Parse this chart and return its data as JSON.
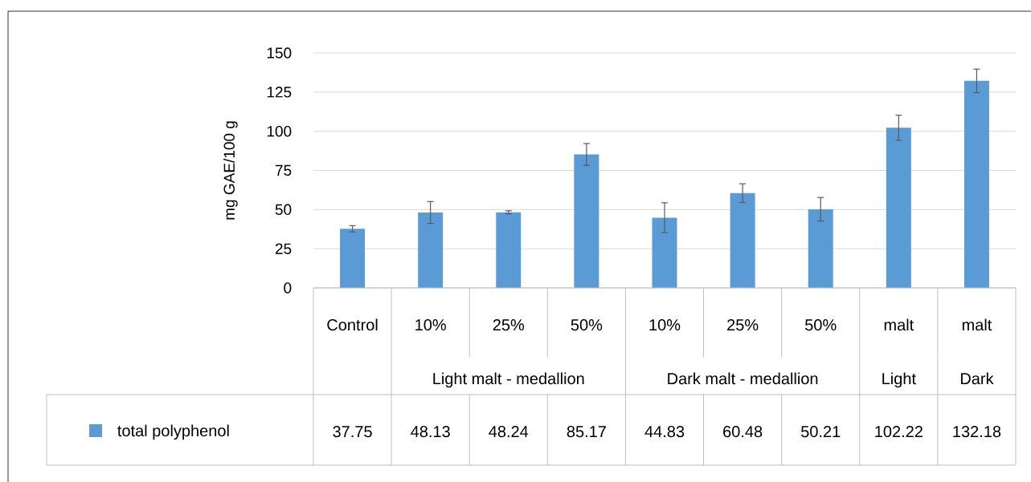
{
  "chart_data": {
    "type": "bar",
    "ylabel": "mg GAE/100 g",
    "categories": [
      "Control",
      "10%",
      "25%",
      "50%",
      "10%",
      "25%",
      "50%",
      "malt",
      "malt"
    ],
    "series": [
      {
        "name": "total polyphenol",
        "color": "#5b9bd5",
        "values": [
          37.75,
          48.13,
          48.24,
          85.17,
          44.83,
          60.48,
          50.21,
          102.22,
          132.18
        ],
        "errors": [
          2,
          7,
          1,
          7,
          9.5,
          6,
          7.5,
          8,
          7.5
        ]
      }
    ],
    "annotations": [
      "Light malt - medallion",
      "Dark malt - medallion",
      "Light",
      "Dark"
    ],
    "ylim": [
      0,
      150
    ],
    "yticks": [
      0,
      25,
      50,
      75,
      100,
      125,
      150
    ],
    "grid": "y",
    "legend": "bottom",
    "data_labels": true
  }
}
